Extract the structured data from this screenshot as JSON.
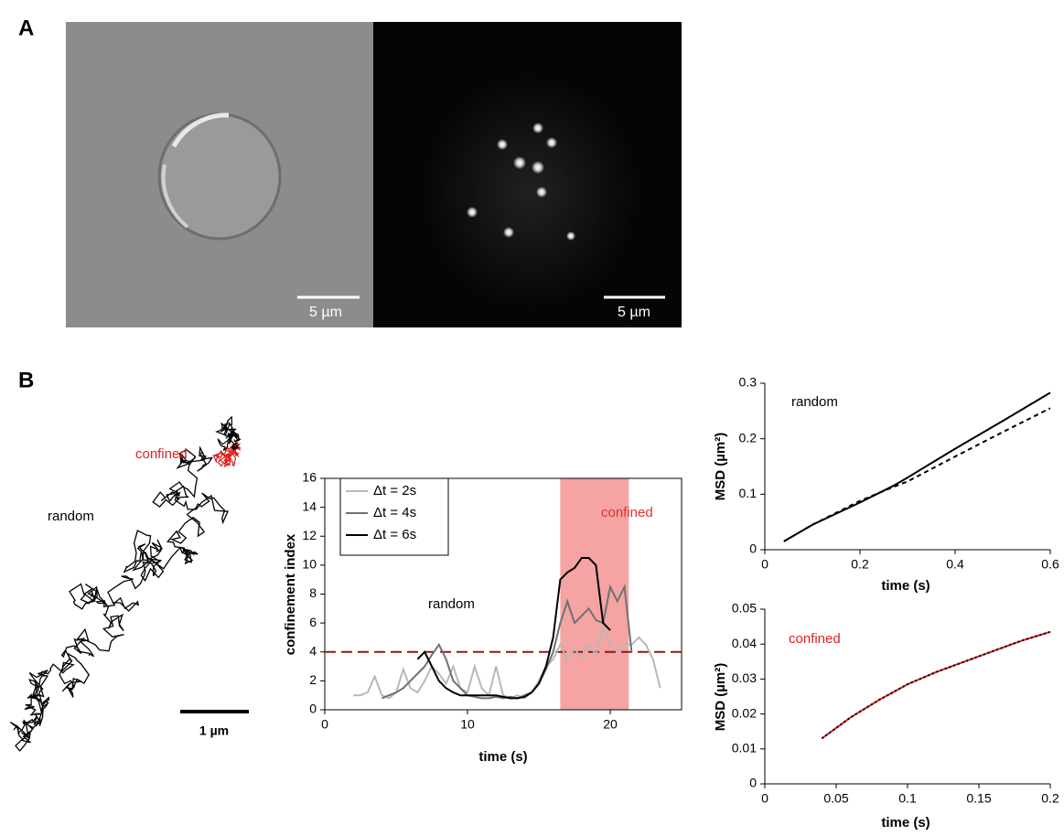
{
  "panel_a": {
    "label": "A",
    "scale_bars": [
      "5 µm",
      "5 µm"
    ]
  },
  "panel_b": {
    "label": "B",
    "trajectory": {
      "confined_label": "confined",
      "random_label": "random",
      "scale_bar": "1 µm"
    }
  },
  "chart_data": [
    {
      "type": "line",
      "xlabel": "time (s)",
      "ylabel": "confinement index",
      "xlim": [
        0,
        25
      ],
      "xticks": [
        0,
        10,
        20
      ],
      "ylim": [
        0,
        16
      ],
      "yticks": [
        0,
        2,
        4,
        6,
        8,
        10,
        12,
        14,
        16
      ],
      "legend": "upper left",
      "annotations": [
        "random",
        "confined"
      ],
      "highlight": {
        "from": 16.5,
        "to": 21.3,
        "color": "#f5a3a3"
      },
      "hline": {
        "value": 4,
        "color": "#8b1a1a",
        "style": "dashed"
      },
      "x": [
        2,
        2.5,
        3,
        3.5,
        4,
        4.5,
        5,
        5.5,
        6,
        6.5,
        7,
        7.5,
        8,
        8.5,
        9,
        9.5,
        10,
        10.5,
        11,
        11.5,
        12,
        12.5,
        13,
        13.5,
        14,
        14.5,
        15,
        15.5,
        16,
        16.5,
        17,
        17.5,
        18,
        18.5,
        19,
        19.5,
        20,
        20.5,
        21,
        21.5,
        22,
        22.5,
        23,
        23.5
      ],
      "series": [
        {
          "name": "Δt = 2s",
          "color": "#b8b8b8",
          "values": [
            1,
            1,
            1.2,
            2.3,
            1,
            0.8,
            1.2,
            2.8,
            1.5,
            1.2,
            2,
            3,
            2.5,
            1.8,
            3,
            1.5,
            1.2,
            3,
            1.5,
            1,
            3,
            1,
            0.8,
            1,
            0.8,
            1.2,
            2,
            3,
            3.5,
            4.5,
            3.5,
            4.2,
            3.6,
            4.5,
            3.8,
            5.8,
            4.5,
            4,
            4.5,
            4.5,
            5,
            4.5,
            3.5,
            1.5
          ]
        },
        {
          "name": "Δt = 4s",
          "color": "#707070",
          "values": [
            null,
            null,
            null,
            null,
            0.8,
            1,
            1.2,
            1.5,
            2,
            2.5,
            3,
            3.8,
            4.5,
            3.5,
            2,
            1.5,
            1,
            0.9,
            0.8,
            0.8,
            0.9,
            0.8,
            0.9,
            0.8,
            1,
            1.2,
            1.8,
            2.8,
            4,
            6,
            7.5,
            6,
            6.5,
            7,
            6.2,
            6,
            8.5,
            7.5,
            8.5,
            4,
            null,
            null,
            null,
            null
          ]
        },
        {
          "name": "Δt = 6s",
          "color": "#000000",
          "values": [
            null,
            null,
            null,
            null,
            null,
            null,
            null,
            null,
            null,
            3.5,
            4,
            3,
            2,
            1.5,
            1.2,
            1,
            1,
            1,
            1,
            1,
            1,
            0.9,
            0.8,
            0.8,
            0.9,
            1.2,
            1.8,
            3,
            5,
            9,
            9.5,
            9.8,
            10.5,
            10.5,
            10,
            6,
            5.5,
            null,
            null,
            null,
            null,
            null,
            null,
            null
          ]
        }
      ]
    },
    {
      "type": "line",
      "xlabel": "time (s)",
      "ylabel": "MSD (µm²)",
      "xlim": [
        0,
        0.6
      ],
      "xticks": [
        0,
        0.2,
        0.4,
        0.6
      ],
      "ylim": [
        0,
        0.3
      ],
      "yticks": [
        0,
        0.1,
        0.2,
        0.3
      ],
      "annotations": [
        "random"
      ],
      "x": [
        0.04,
        0.1,
        0.2,
        0.27,
        0.3,
        0.4,
        0.5,
        0.6
      ],
      "series": [
        {
          "color": "#000000",
          "style": "solid",
          "values": [
            0.015,
            0.045,
            0.085,
            0.115,
            0.13,
            0.182,
            0.232,
            0.283
          ]
        },
        {
          "color": "#000000",
          "style": "dashed",
          "values": [
            0.015,
            0.045,
            0.088,
            0.113,
            0.123,
            0.168,
            0.212,
            0.255
          ]
        }
      ]
    },
    {
      "type": "line",
      "xlabel": "time (s)",
      "ylabel": "MSD (µm²)",
      "xlim": [
        0,
        0.2
      ],
      "xticks": [
        0,
        0.05,
        0.1,
        0.15,
        0.2
      ],
      "ylim": [
        0,
        0.05
      ],
      "yticks": [
        0,
        0.01,
        0.02,
        0.03,
        0.04,
        0.05
      ],
      "annotations": [
        "confined"
      ],
      "x": [
        0.04,
        0.06,
        0.08,
        0.1,
        0.12,
        0.14,
        0.16,
        0.18,
        0.2
      ],
      "series": [
        {
          "color": "#e02020",
          "style": "solid",
          "values": [
            0.013,
            0.019,
            0.024,
            0.0285,
            0.032,
            0.035,
            0.038,
            0.041,
            0.0435
          ]
        },
        {
          "color": "#000000",
          "style": "dotted",
          "values": [
            0.013,
            0.019,
            0.024,
            0.0285,
            0.032,
            0.035,
            0.038,
            0.041,
            0.0435
          ]
        }
      ]
    }
  ]
}
